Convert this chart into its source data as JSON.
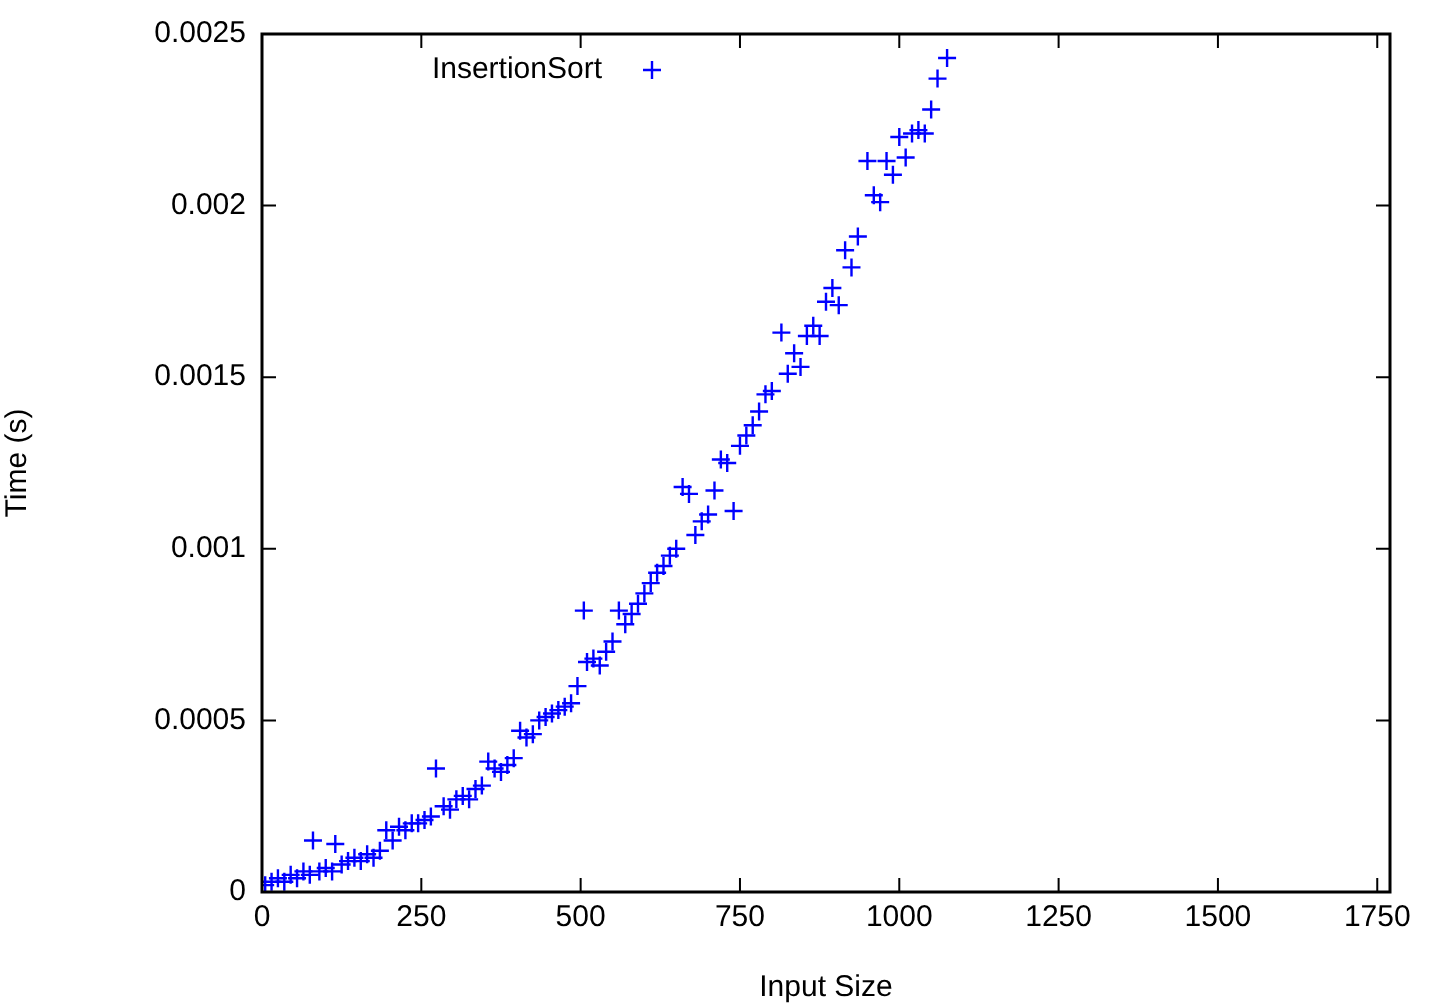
{
  "chart_data": {
    "type": "scatter",
    "xlabel": "Input Size",
    "ylabel": "Time (s)",
    "xlim": [
      0,
      1770
    ],
    "xticks": [
      0,
      250,
      500,
      750,
      1000,
      1250,
      1500,
      1750
    ],
    "ylim": [
      0,
      0.0025
    ],
    "yticks": [
      0,
      0.0005,
      0.001,
      0.0015,
      0.002,
      0.0025
    ],
    "grid": false,
    "legend": "top left",
    "marker": "cross",
    "series": [
      {
        "name": "InsertionSort",
        "color": "#0000ff",
        "x": [
          5,
          15,
          25,
          35,
          45,
          55,
          65,
          75,
          80,
          90,
          100,
          110,
          115,
          125,
          135,
          145,
          155,
          165,
          175,
          185,
          195,
          205,
          215,
          225,
          235,
          245,
          255,
          265,
          273,
          285,
          295,
          305,
          315,
          325,
          335,
          345,
          355,
          365,
          375,
          385,
          395,
          405,
          415,
          425,
          435,
          445,
          455,
          465,
          475,
          485,
          495,
          505,
          510,
          520,
          530,
          540,
          550,
          560,
          570,
          580,
          590,
          600,
          610,
          620,
          630,
          640,
          650,
          660,
          670,
          680,
          690,
          700,
          710,
          720,
          730,
          740,
          750,
          760,
          770,
          780,
          790,
          800,
          815,
          825,
          835,
          845,
          855,
          865,
          875,
          885,
          895,
          905,
          915,
          925,
          935,
          950,
          960,
          970,
          980,
          990,
          1000,
          1010,
          1020,
          1030,
          1040,
          1050,
          1060,
          1075
        ],
        "values": [
          2e-05,
          3e-05,
          4e-05,
          3e-05,
          5e-05,
          4e-05,
          6e-05,
          5e-05,
          0.00015,
          6e-05,
          7e-05,
          6e-05,
          0.00014,
          8e-05,
          9e-05,
          0.0001,
          9e-05,
          0.00011,
          0.0001,
          0.00012,
          0.00018,
          0.00015,
          0.00019,
          0.00018,
          0.0002,
          0.0002,
          0.00021,
          0.00022,
          0.00036,
          0.00025,
          0.00024,
          0.00027,
          0.00028,
          0.00027,
          0.0003,
          0.00031,
          0.00038,
          0.00036,
          0.00035,
          0.00037,
          0.00039,
          0.00047,
          0.00045,
          0.00046,
          0.0005,
          0.00051,
          0.00052,
          0.00053,
          0.00054,
          0.00055,
          0.0006,
          0.00082,
          0.00067,
          0.00068,
          0.00066,
          0.0007,
          0.00073,
          0.00082,
          0.00078,
          0.00081,
          0.00084,
          0.00087,
          0.0009,
          0.00093,
          0.00095,
          0.00098,
          0.001,
          0.00118,
          0.00116,
          0.00104,
          0.00108,
          0.0011,
          0.00117,
          0.00126,
          0.00125,
          0.00111,
          0.0013,
          0.00133,
          0.00136,
          0.0014,
          0.00145,
          0.00146,
          0.00163,
          0.00151,
          0.00157,
          0.00153,
          0.00162,
          0.00165,
          0.00162,
          0.00172,
          0.00176,
          0.00171,
          0.00187,
          0.00182,
          0.00191,
          0.00213,
          0.00203,
          0.00201,
          0.00213,
          0.00209,
          0.0022,
          0.00214,
          0.00221,
          0.00222,
          0.00221,
          0.00228,
          0.00237,
          0.00243
        ]
      }
    ]
  }
}
